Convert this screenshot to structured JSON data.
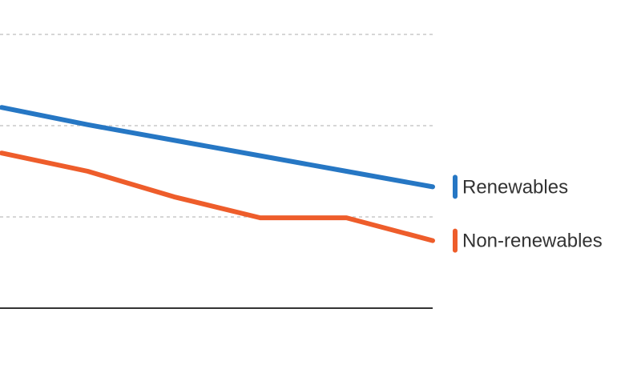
{
  "chart_data": {
    "type": "line",
    "title": "",
    "xlabel": "",
    "ylabel": "",
    "x": [
      0,
      1,
      2,
      3,
      4,
      5
    ],
    "xlim": [
      0,
      5
    ],
    "ylim": [
      0,
      3
    ],
    "gridlines_y": [
      1,
      2,
      3
    ],
    "grid": true,
    "legend": "right, inline at line ends",
    "series": [
      {
        "name": "Renewables",
        "color": "#2677c4",
        "values": [
          2.2,
          2.01,
          1.84,
          1.67,
          1.5,
          1.33
        ]
      },
      {
        "name": "Non-renewables",
        "color": "#ee5d2b",
        "values": [
          1.7,
          1.5,
          1.22,
          0.99,
          0.99,
          0.74
        ]
      }
    ]
  }
}
